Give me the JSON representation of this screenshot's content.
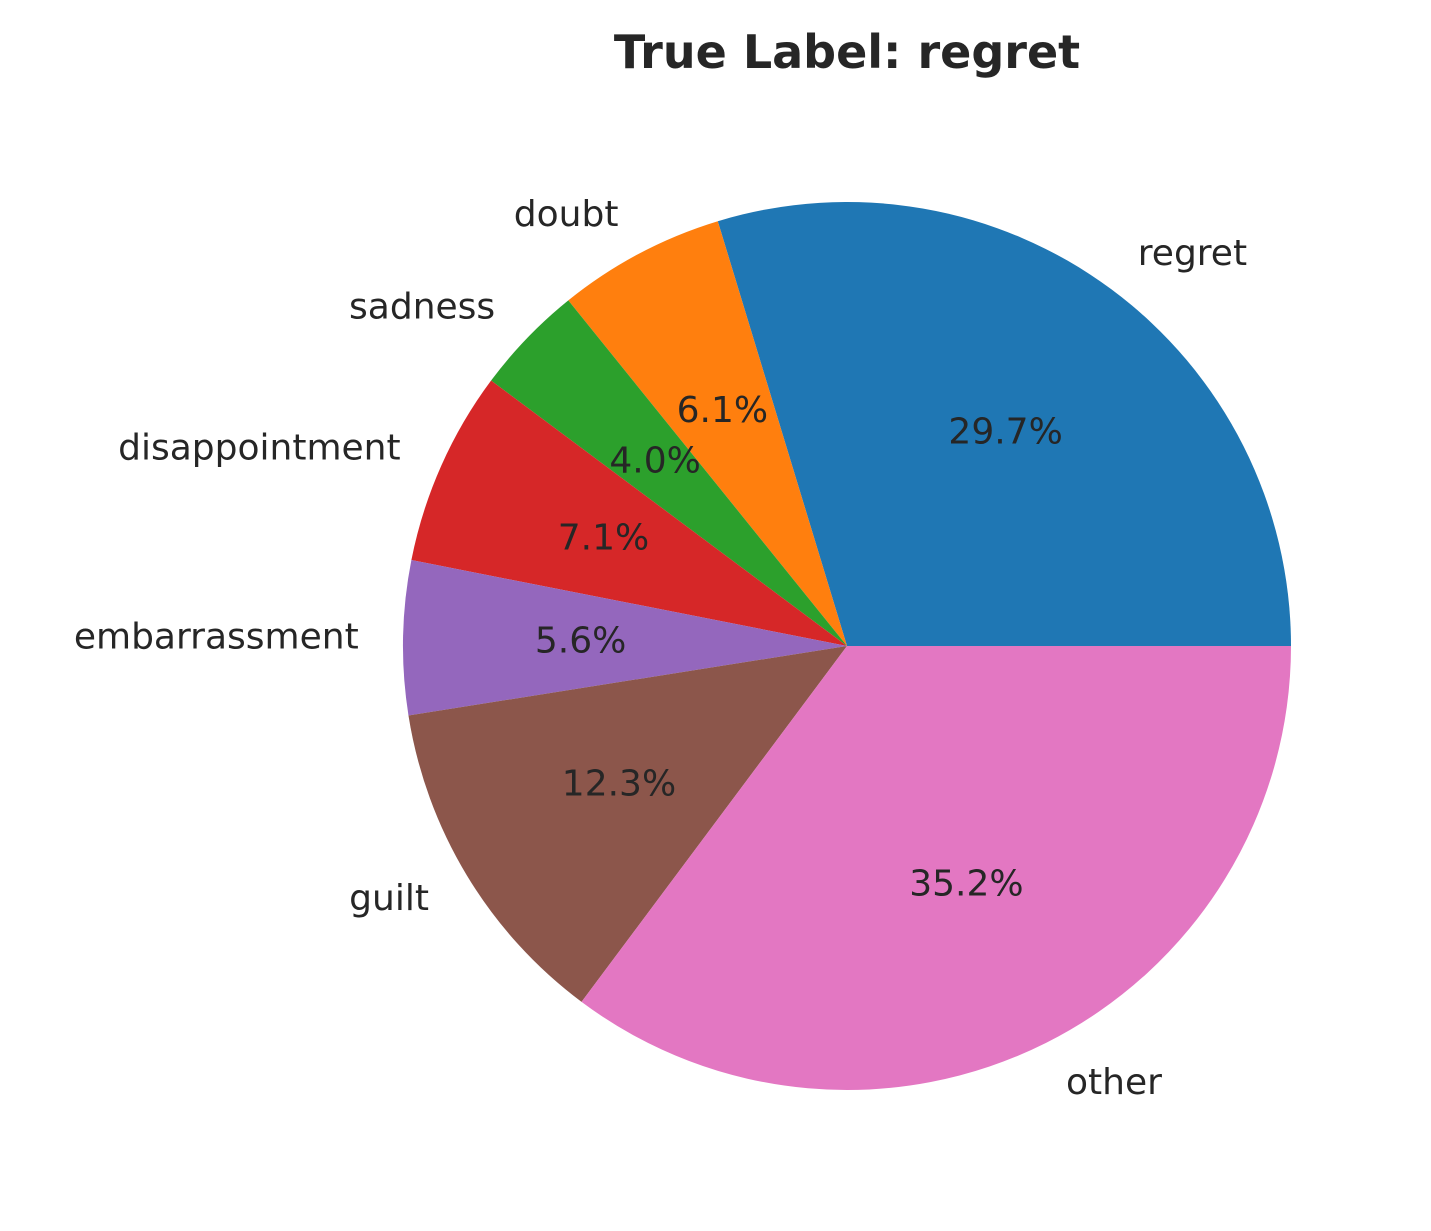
{
  "chart_data": {
    "type": "pie",
    "title": "True Label: regret",
    "start_angle_deg": 0,
    "direction": "counterclockwise",
    "slices": [
      {
        "label": "regret",
        "value": 29.7,
        "pct_label": "29.7%",
        "color": "#1f77b4"
      },
      {
        "label": "doubt",
        "value": 6.1,
        "pct_label": "6.1%",
        "color": "#ff7f0e"
      },
      {
        "label": "sadness",
        "value": 4.0,
        "pct_label": "4.0%",
        "color": "#2ca02c"
      },
      {
        "label": "disappointment",
        "value": 7.1,
        "pct_label": "7.1%",
        "color": "#d62728"
      },
      {
        "label": "embarrassment",
        "value": 5.6,
        "pct_label": "5.6%",
        "color": "#9467bd"
      },
      {
        "label": "guilt",
        "value": 12.3,
        "pct_label": "12.3%",
        "color": "#8c564b"
      },
      {
        "label": "other",
        "value": 35.2,
        "pct_label": "35.2%",
        "color": "#e377c2"
      }
    ]
  }
}
